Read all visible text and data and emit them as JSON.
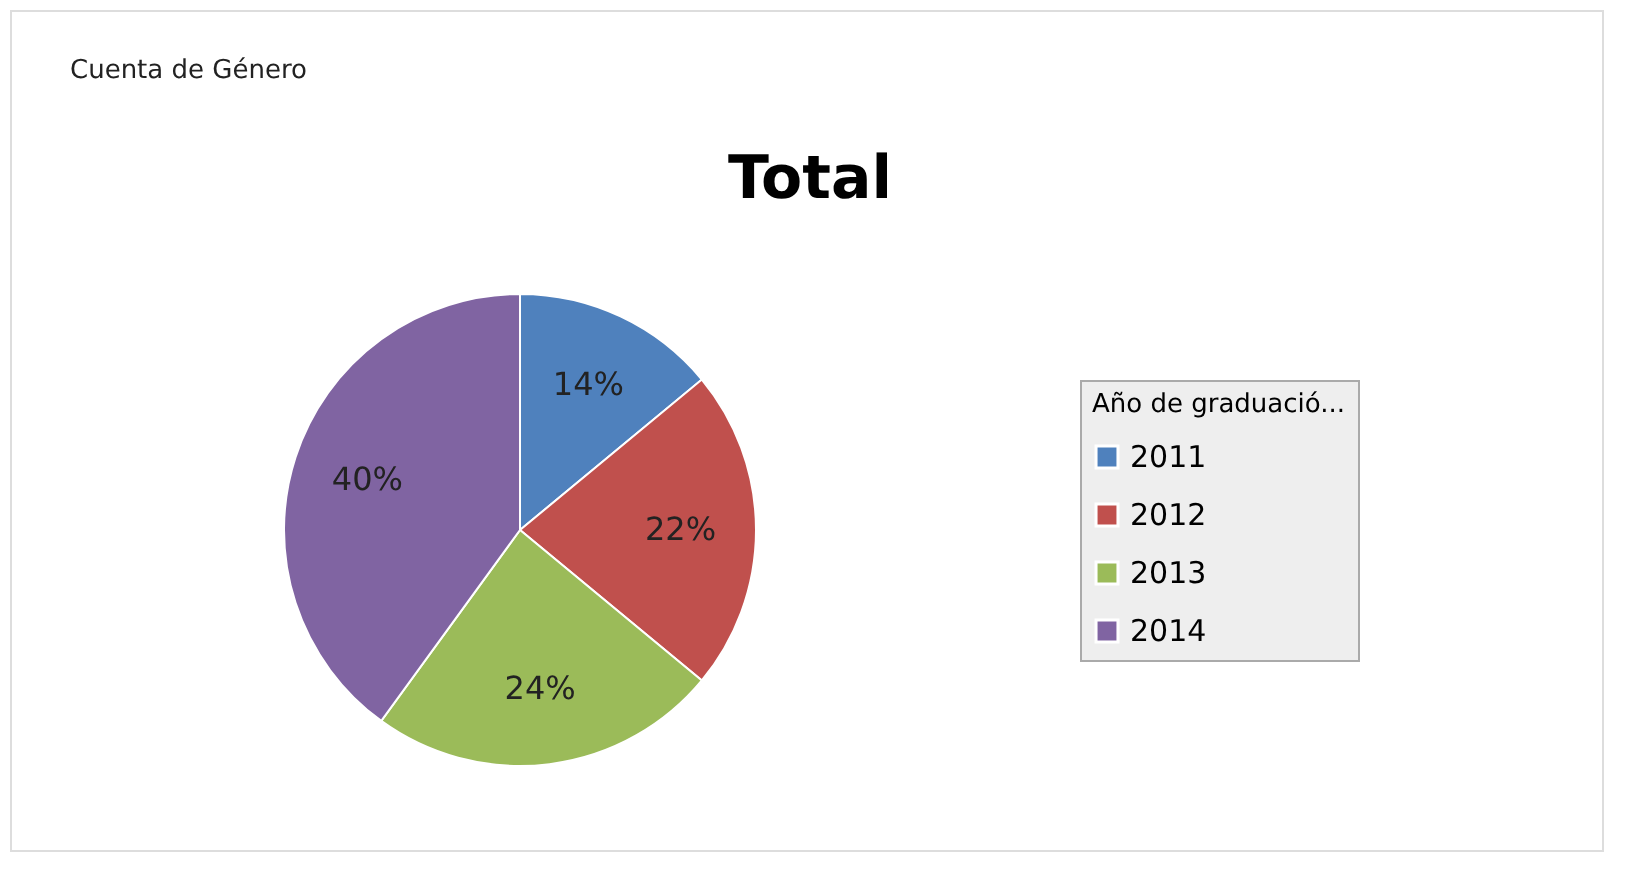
{
  "chart_data": {
    "type": "pie",
    "title": "Total",
    "legend_title": "Año de graduació...",
    "annotations": [
      "Cuenta de Género"
    ],
    "categories": [
      "2011",
      "2012",
      "2013",
      "2014"
    ],
    "values": [
      14,
      22,
      24,
      40
    ],
    "colors": [
      "#4f81bd",
      "#c0504d",
      "#9bbb59",
      "#8064a2"
    ],
    "value_labels": [
      "14%",
      "22%",
      "24%",
      "40%"
    ],
    "legend": "right"
  }
}
